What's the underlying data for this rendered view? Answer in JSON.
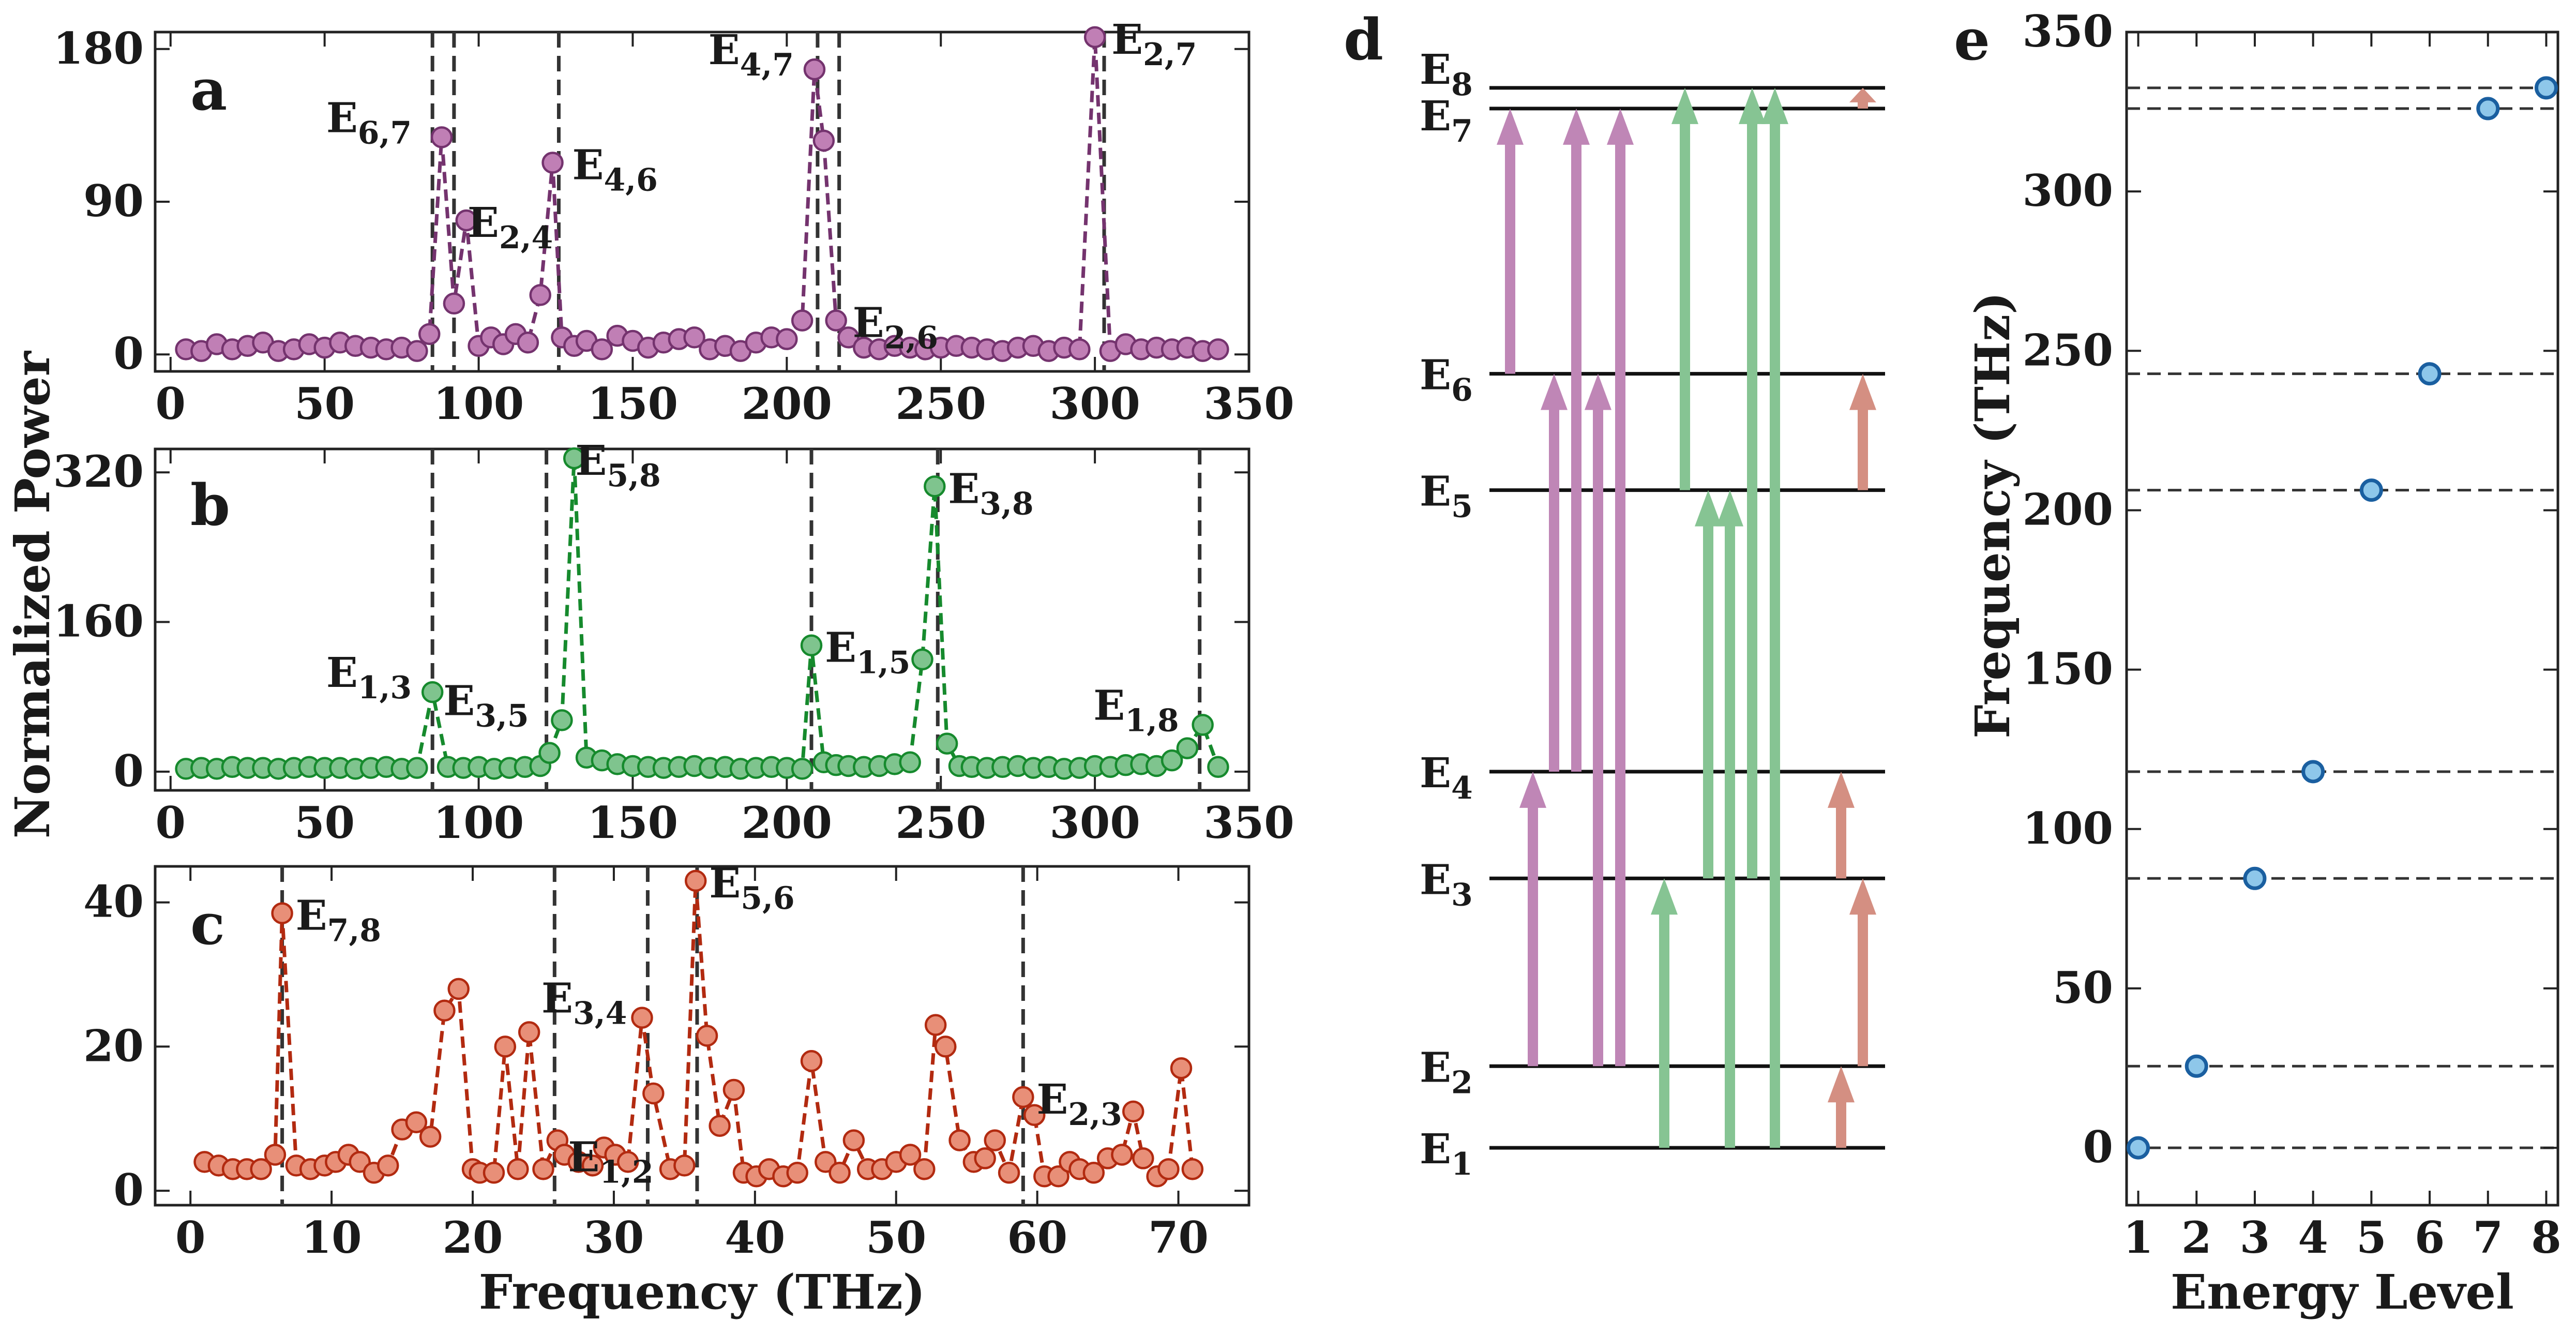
{
  "chart_data": [
    {
      "panel": "a",
      "type": "line",
      "xlim": [
        -5,
        350
      ],
      "ylim": [
        -10,
        190
      ],
      "xticks": [
        0,
        50,
        100,
        150,
        200,
        250,
        300,
        350
      ],
      "yticks": [
        0,
        90,
        180
      ],
      "xtick_labels": [
        "0",
        "50",
        "100",
        "150",
        "200",
        "250",
        "300",
        "350"
      ],
      "ytick_labels": [
        "0",
        "90",
        "180"
      ],
      "line_color": "#74336e",
      "marker_fill": "#c07fb5",
      "vlines": [
        85,
        92,
        126,
        210,
        217,
        303
      ],
      "series": [
        {
          "x": [
            5,
            10,
            15,
            20,
            25,
            30,
            35,
            40,
            45,
            50,
            55,
            60,
            65,
            70,
            75,
            80,
            84,
            88,
            92,
            96,
            100,
            104,
            108,
            112,
            116,
            120,
            124,
            127,
            131,
            135,
            140,
            145,
            150,
            155,
            160,
            165,
            170,
            175,
            180,
            185,
            190,
            195,
            200,
            205,
            209,
            212,
            216,
            220,
            225,
            230,
            235,
            240,
            245,
            250,
            255,
            260,
            265,
            270,
            275,
            280,
            285,
            290,
            295,
            300,
            305,
            310,
            315,
            320,
            325,
            330,
            335,
            340
          ],
          "y": [
            3,
            2,
            6,
            3,
            5,
            7,
            2,
            3,
            6,
            4,
            7,
            5,
            4,
            3,
            4,
            2,
            12,
            128,
            30,
            79,
            5,
            10,
            6,
            12,
            7,
            35,
            113,
            10,
            5,
            8,
            3,
            11,
            8,
            4,
            7,
            9,
            10,
            3,
            5,
            2,
            7,
            10,
            9,
            20,
            168,
            126,
            20,
            10,
            4,
            3,
            5,
            4,
            3,
            4,
            5,
            4,
            3,
            2,
            4,
            5,
            2,
            4,
            3,
            187,
            2,
            6,
            3,
            4,
            3,
            4,
            2,
            3
          ]
        }
      ],
      "annotations": [
        {
          "base": "E",
          "sub": "6,7",
          "x": 85,
          "y": 128,
          "anchor": "left"
        },
        {
          "base": "E",
          "sub": "2,4",
          "x": 92,
          "y": 79,
          "anchor": "right"
        },
        {
          "base": "E",
          "sub": "4,6",
          "x": 126,
          "y": 113,
          "anchor": "right"
        },
        {
          "base": "E",
          "sub": "4,7",
          "x": 209,
          "y": 168,
          "anchor": "left"
        },
        {
          "base": "E",
          "sub": "2,6",
          "x": 217,
          "y": 20,
          "anchor": "right"
        },
        {
          "base": "E",
          "sub": "2,7",
          "x": 301,
          "y": 187,
          "anchor": "right"
        }
      ]
    },
    {
      "panel": "b",
      "type": "line",
      "xlim": [
        -5,
        350
      ],
      "ylim": [
        -20,
        345
      ],
      "xticks": [
        0,
        50,
        100,
        150,
        200,
        250,
        300,
        350
      ],
      "yticks": [
        0,
        160,
        320
      ],
      "xtick_labels": [
        "0",
        "50",
        "100",
        "150",
        "200",
        "250",
        "300",
        "350"
      ],
      "ytick_labels": [
        "0",
        "160",
        "320"
      ],
      "line_color": "#168a2d",
      "marker_fill": "#7fc48e",
      "vlines": [
        85,
        122,
        208,
        249,
        334
      ],
      "series": [
        {
          "x": [
            5,
            10,
            15,
            20,
            25,
            30,
            35,
            40,
            45,
            50,
            55,
            60,
            65,
            70,
            75,
            80,
            85,
            90,
            95,
            100,
            105,
            110,
            115,
            120,
            123,
            127,
            131,
            135,
            140,
            145,
            150,
            155,
            160,
            165,
            170,
            175,
            180,
            185,
            190,
            195,
            200,
            205,
            208,
            212,
            216,
            220,
            225,
            230,
            235,
            240,
            244,
            248,
            252,
            256,
            260,
            265,
            270,
            275,
            280,
            285,
            290,
            295,
            300,
            305,
            310,
            315,
            320,
            325,
            330,
            335,
            340
          ],
          "y": [
            3,
            4,
            3,
            5,
            4,
            4,
            3,
            4,
            5,
            4,
            4,
            3,
            4,
            5,
            3,
            4,
            85,
            5,
            4,
            5,
            3,
            4,
            5,
            6,
            20,
            55,
            335,
            15,
            12,
            8,
            6,
            5,
            4,
            5,
            6,
            4,
            5,
            3,
            4,
            5,
            4,
            3,
            135,
            10,
            7,
            6,
            5,
            6,
            8,
            10,
            120,
            305,
            30,
            6,
            5,
            4,
            5,
            6,
            4,
            5,
            3,
            4,
            6,
            5,
            7,
            8,
            6,
            12,
            25,
            50,
            5
          ]
        }
      ],
      "annotations": [
        {
          "base": "E",
          "sub": "1,3",
          "x": 85,
          "y": 85,
          "anchor": "left"
        },
        {
          "base": "E",
          "sub": "3,5",
          "x": 123,
          "y": 55,
          "anchor": "left"
        },
        {
          "base": "E",
          "sub": "5,8",
          "x": 127,
          "y": 335,
          "anchor": "right"
        },
        {
          "base": "E",
          "sub": "1,5",
          "x": 208,
          "y": 135,
          "anchor": "right"
        },
        {
          "base": "E",
          "sub": "3,8",
          "x": 248,
          "y": 305,
          "anchor": "right"
        },
        {
          "base": "E",
          "sub": "1,8",
          "x": 334,
          "y": 50,
          "anchor": "left"
        }
      ]
    },
    {
      "panel": "c",
      "type": "line",
      "xlim": [
        -2.5,
        75
      ],
      "ylim": [
        -2,
        45
      ],
      "xticks": [
        0,
        10,
        20,
        30,
        40,
        50,
        60,
        70
      ],
      "yticks": [
        0,
        20,
        40
      ],
      "xtick_labels": [
        "0",
        "10",
        "20",
        "30",
        "40",
        "50",
        "60",
        "70"
      ],
      "ytick_labels": [
        "0",
        "20",
        "40"
      ],
      "xlabel": "Frequency (THz)",
      "line_color": "#b22a10",
      "marker_fill": "#e88f78",
      "vlines": [
        6.5,
        25.8,
        32.4,
        35.9,
        59.0
      ],
      "series": [
        {
          "x": [
            1,
            2,
            3,
            4,
            5,
            6,
            6.5,
            7.5,
            8.5,
            9.5,
            10.3,
            11.2,
            12,
            13,
            14,
            15,
            16,
            17,
            18,
            19,
            20,
            20.5,
            21.5,
            22.3,
            23.2,
            24,
            25,
            26,
            26.5,
            27.5,
            28.5,
            29.3,
            30.1,
            31,
            32,
            32.8,
            34,
            35,
            35.8,
            36.6,
            37.5,
            38.5,
            39.2,
            40.1,
            41,
            42,
            43,
            44,
            45,
            46,
            47,
            48,
            49,
            50,
            51,
            52,
            52.8,
            53.5,
            54.5,
            55.5,
            56.3,
            57,
            58,
            59,
            59.8,
            60.5,
            61.5,
            62.3,
            63,
            64,
            65,
            66,
            66.8,
            67.5,
            68.5,
            69.3,
            70.2,
            71
          ],
          "y": [
            4,
            3.5,
            3,
            3,
            3,
            5,
            38.5,
            3.5,
            3,
            3.5,
            4,
            5,
            4,
            2.5,
            3.5,
            8.5,
            9.5,
            7.5,
            25,
            28,
            3,
            2.5,
            2.5,
            20,
            3,
            22,
            3,
            7,
            5,
            4,
            3.5,
            6,
            5,
            4,
            24,
            13.5,
            3,
            3.5,
            43,
            21.5,
            9,
            14,
            2.5,
            2,
            3,
            2,
            2.5,
            18,
            4,
            2.5,
            7,
            3,
            3,
            4,
            5,
            3,
            23,
            20,
            7,
            4,
            4.5,
            7,
            2.5,
            13,
            10.5,
            2,
            2,
            4,
            3,
            2.5,
            4.5,
            5,
            11,
            4.5,
            2,
            3,
            17,
            3
          ]
        }
      ],
      "annotations": [
        {
          "base": "E",
          "sub": "7,8",
          "x": 6.5,
          "y": 38.5,
          "anchor": "right"
        },
        {
          "base": "E",
          "sub": "1,2",
          "x": 25.8,
          "y": 5,
          "anchor": "right"
        },
        {
          "base": "E",
          "sub": "3,4",
          "x": 32.4,
          "y": 24,
          "anchor": "left"
        },
        {
          "base": "E",
          "sub": "5,6",
          "x": 35.8,
          "y": 43,
          "anchor": "right"
        },
        {
          "base": "E",
          "sub": "2,3",
          "x": 59.0,
          "y": 13,
          "anchor": "right"
        }
      ]
    },
    {
      "panel": "e",
      "type": "scatter",
      "xlim": [
        0.8,
        8.2
      ],
      "ylim": [
        -18,
        350
      ],
      "xticks": [
        1,
        2,
        3,
        4,
        5,
        6,
        7,
        8
      ],
      "yticks": [
        0,
        50,
        100,
        150,
        200,
        250,
        300,
        350
      ],
      "xtick_labels": [
        "1",
        "2",
        "3",
        "4",
        "5",
        "6",
        "7",
        "8"
      ],
      "ytick_labels": [
        "0",
        "50",
        "100",
        "150",
        "200",
        "250",
        "300",
        "350"
      ],
      "xlabel": "Energy Level",
      "ylabel": "Frequency (THz)",
      "marker_fill": "#8ec7ea",
      "marker_edge": "#1a5fa0",
      "hlines": [
        0,
        25.6,
        84.5,
        118.0,
        206.3,
        242.8,
        326.0,
        332.5
      ],
      "series": [
        {
          "x": [
            1,
            2,
            3,
            4,
            5,
            6,
            7,
            8
          ],
          "y": [
            0,
            25.6,
            84.5,
            118.0,
            206.3,
            242.8,
            326.0,
            332.5
          ]
        }
      ]
    },
    {
      "panel": "d",
      "type": "diagram",
      "levels": [
        {
          "base": "E",
          "sub": "1",
          "value": 0
        },
        {
          "base": "E",
          "sub": "2",
          "value": 25.6
        },
        {
          "base": "E",
          "sub": "3",
          "value": 84.5
        },
        {
          "base": "E",
          "sub": "4",
          "value": 118.0
        },
        {
          "base": "E",
          "sub": "5",
          "value": 206.3
        },
        {
          "base": "E",
          "sub": "6",
          "value": 242.8
        },
        {
          "base": "E",
          "sub": "7",
          "value": 326.0
        },
        {
          "base": "E",
          "sub": "8",
          "value": 332.5
        }
      ],
      "transitions": [
        {
          "from": 6,
          "to": 7,
          "set": "a"
        },
        {
          "from": 2,
          "to": 4,
          "set": "a"
        },
        {
          "from": 4,
          "to": 6,
          "set": "a"
        },
        {
          "from": 4,
          "to": 7,
          "set": "a"
        },
        {
          "from": 2,
          "to": 6,
          "set": "a"
        },
        {
          "from": 2,
          "to": 7,
          "set": "a"
        },
        {
          "from": 1,
          "to": 3,
          "set": "b"
        },
        {
          "from": 5,
          "to": 8,
          "set": "b"
        },
        {
          "from": 3,
          "to": 5,
          "set": "b"
        },
        {
          "from": 1,
          "to": 5,
          "set": "b"
        },
        {
          "from": 3,
          "to": 8,
          "set": "b"
        },
        {
          "from": 1,
          "to": 8,
          "set": "b"
        },
        {
          "from": 1,
          "to": 2,
          "set": "c"
        },
        {
          "from": 2,
          "to": 3,
          "set": "c"
        },
        {
          "from": 3,
          "to": 4,
          "set": "c"
        },
        {
          "from": 5,
          "to": 6,
          "set": "c"
        },
        {
          "from": 7,
          "to": 8,
          "set": "c"
        }
      ],
      "set_colors": {
        "a": "#bf86b6",
        "b": "#86c493",
        "c": "#d48f82"
      }
    }
  ],
  "ylabel_shared": "Normalized Power",
  "panel_letters": {
    "a": "a",
    "b": "b",
    "c": "c",
    "d": "d",
    "e": "e"
  }
}
